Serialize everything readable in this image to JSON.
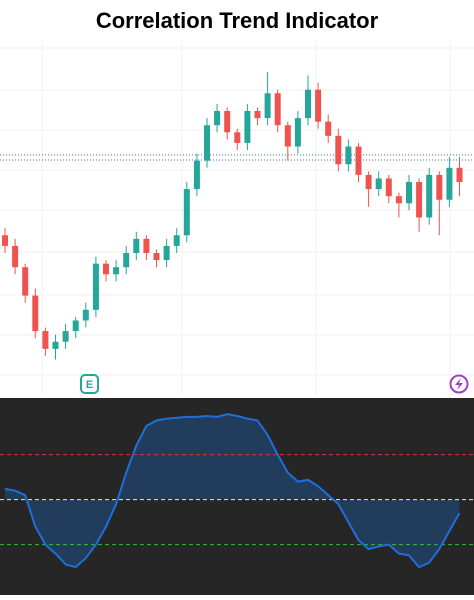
{
  "chart_data": [
    {
      "type": "candlestick",
      "title": "Correlation Trend Indicator",
      "up_color": "#26a69a",
      "down_color": "#ef5350",
      "ylim": [
        0,
        100
      ],
      "candles": [
        [
          45,
          47,
          40,
          42
        ],
        [
          42,
          44,
          34,
          36
        ],
        [
          36,
          37,
          26,
          28
        ],
        [
          28,
          30,
          16,
          18
        ],
        [
          18,
          19,
          11,
          13
        ],
        [
          13,
          17,
          10,
          15
        ],
        [
          15,
          20,
          13,
          18
        ],
        [
          18,
          22,
          16,
          21
        ],
        [
          21,
          26,
          19,
          24
        ],
        [
          24,
          39,
          22,
          37
        ],
        [
          37,
          38,
          32,
          34
        ],
        [
          34,
          38,
          32,
          36
        ],
        [
          36,
          42,
          34,
          40
        ],
        [
          40,
          46,
          38,
          44
        ],
        [
          44,
          45,
          38,
          40
        ],
        [
          40,
          41,
          36,
          38
        ],
        [
          38,
          44,
          36,
          42
        ],
        [
          42,
          47,
          40,
          45
        ],
        [
          45,
          60,
          43,
          58
        ],
        [
          58,
          68,
          56,
          66
        ],
        [
          66,
          78,
          64,
          76
        ],
        [
          76,
          82,
          74,
          80
        ],
        [
          80,
          81,
          72,
          74
        ],
        [
          74,
          75,
          69,
          71
        ],
        [
          71,
          82,
          69,
          80
        ],
        [
          80,
          81,
          76,
          78
        ],
        [
          78,
          91,
          76,
          85
        ],
        [
          85,
          86,
          74,
          76
        ],
        [
          76,
          77,
          66,
          70
        ],
        [
          70,
          80,
          68,
          78
        ],
        [
          78,
          90,
          76,
          86
        ],
        [
          86,
          88,
          75,
          77
        ],
        [
          77,
          79,
          71,
          73
        ],
        [
          73,
          75,
          63,
          65
        ],
        [
          65,
          72,
          63,
          70
        ],
        [
          70,
          71,
          60,
          62
        ],
        [
          62,
          63,
          53,
          58
        ],
        [
          58,
          63,
          56,
          61
        ],
        [
          61,
          62,
          54,
          56
        ],
        [
          56,
          57,
          50,
          54
        ],
        [
          54,
          62,
          52,
          60
        ],
        [
          60,
          61,
          46,
          50
        ],
        [
          50,
          64,
          48,
          62
        ],
        [
          62,
          63,
          45,
          55
        ],
        [
          55,
          67,
          53,
          64
        ],
        [
          64,
          67,
          56,
          60
        ]
      ],
      "badges": [
        "E"
      ]
    },
    {
      "type": "line",
      "name": "Correlation Trend",
      "color": "#1e6fd9",
      "fill": "rgba(30,90,160,0.45)",
      "background": "#262626",
      "ylim": [
        -1.06,
        1.13
      ],
      "levels": [
        {
          "value": 0.5,
          "color": "#e03030"
        },
        {
          "value": 0,
          "color": "#e8e8c8"
        },
        {
          "value": -0.5,
          "color": "#30c030"
        }
      ],
      "values": [
        0.12,
        0.1,
        0.05,
        -0.3,
        -0.5,
        -0.6,
        -0.72,
        -0.75,
        -0.65,
        -0.5,
        -0.3,
        -0.05,
        0.3,
        0.6,
        0.82,
        0.88,
        0.9,
        0.91,
        0.92,
        0.92,
        0.93,
        0.92,
        0.95,
        0.93,
        0.9,
        0.88,
        0.72,
        0.5,
        0.3,
        0.2,
        0.22,
        0.15,
        0.05,
        -0.05,
        -0.25,
        -0.45,
        -0.55,
        -0.52,
        -0.5,
        -0.6,
        -0.62,
        -0.75,
        -0.7,
        -0.55,
        -0.35,
        -0.15
      ]
    }
  ]
}
